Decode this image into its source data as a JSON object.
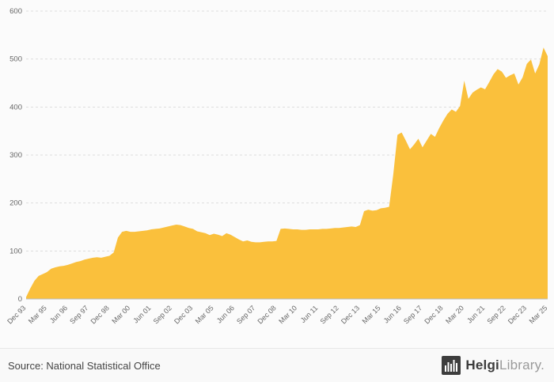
{
  "chart_data": {
    "type": "area",
    "title": "",
    "xlabel": "",
    "ylabel": "",
    "ylim": [
      0,
      600
    ],
    "y_ticks": [
      0,
      100,
      200,
      300,
      400,
      500,
      600
    ],
    "grid": "horizontal-dashed",
    "legend": "none",
    "tick_every": 5,
    "x_tick_labels": [
      "Dec 93",
      "Mar 95",
      "Jun 96",
      "Sep 97",
      "Dec 98",
      "Mar 00",
      "Jun 01",
      "Sep 02",
      "Dec 03",
      "Mar 05",
      "Jun 06",
      "Sep 07",
      "Dec 08",
      "Mar 10",
      "Jun 11",
      "Sep 12",
      "Dec 13",
      "Mar 15",
      "Jun 16",
      "Sep 17",
      "Dec 18",
      "Mar 20",
      "Jun 21",
      "Sep 22",
      "Dec 23",
      "Mar 25"
    ],
    "values": [
      4,
      22,
      38,
      48,
      52,
      56,
      63,
      66,
      68,
      69,
      71,
      74,
      77,
      79,
      82,
      84,
      86,
      87,
      86,
      88,
      90,
      97,
      128,
      140,
      142,
      140,
      140,
      141,
      142,
      143,
      145,
      146,
      147,
      149,
      151,
      153,
      155,
      154,
      151,
      148,
      146,
      141,
      139,
      137,
      133,
      136,
      134,
      131,
      137,
      134,
      129,
      124,
      120,
      122,
      119,
      118,
      118,
      119,
      120,
      120,
      121,
      146,
      147,
      146,
      145,
      145,
      144,
      144,
      145,
      145,
      145,
      146,
      146,
      147,
      148,
      148,
      149,
      150,
      151,
      150,
      154,
      183,
      186,
      184,
      185,
      189,
      190,
      192,
      260,
      342,
      347,
      330,
      312,
      322,
      334,
      316,
      330,
      344,
      338,
      356,
      372,
      386,
      395,
      390,
      402,
      455,
      417,
      430,
      436,
      441,
      437,
      452,
      468,
      479,
      474,
      461,
      466,
      470,
      447,
      462,
      490,
      499,
      470,
      489,
      524,
      506
    ],
    "colors": {
      "fill": "#FAC03C",
      "grid": "#dddddd",
      "axis": "#bbbbbb",
      "tick_text": "#666666"
    }
  },
  "footer": {
    "source": "Source: National Statistical Office",
    "logo": {
      "icon": "bar-chart-logo-icon",
      "brand_bold": "Helgi",
      "brand_light": "Library",
      "dot": "."
    }
  }
}
